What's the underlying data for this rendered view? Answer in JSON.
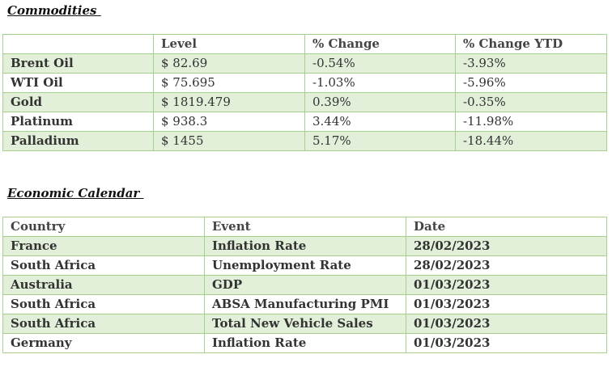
{
  "commodities": {
    "heading": "Commodities ",
    "columns": [
      "",
      "Level",
      "% Change",
      "% Change YTD"
    ],
    "rows": [
      {
        "name": "Brent Oil",
        "level": "$ 82.69",
        "change": "-0.54%",
        "ytd": "-3.93%"
      },
      {
        "name": "WTI Oil",
        "level": "$ 75.695",
        "change": "-1.03%",
        "ytd": "-5.96%"
      },
      {
        "name": "Gold",
        "level": "$ 1819.479",
        "change": "0.39%",
        "ytd": "-0.35%"
      },
      {
        "name": "Platinum",
        "level": "$ 938.3",
        "change": "3.44%",
        "ytd": "-11.98%"
      },
      {
        "name": "Palladium",
        "level": "$ 1455",
        "change": "5.17%",
        "ytd": "-18.44%"
      }
    ]
  },
  "calendar": {
    "heading": "Economic Calendar ",
    "columns": [
      "Country",
      "Event",
      "Date"
    ],
    "rows": [
      {
        "country": "France",
        "event": "Inflation Rate",
        "date": "28/02/2023"
      },
      {
        "country": "South Africa",
        "event": "Unemployment Rate",
        "date": "28/02/2023"
      },
      {
        "country": "Australia",
        "event": "GDP",
        "date": "01/03/2023"
      },
      {
        "country": "South Africa",
        "event": "ABSA Manufacturing PMI",
        "date": "01/03/2023"
      },
      {
        "country": "South Africa",
        "event": "Total New Vehicle Sales",
        "date": "01/03/2023"
      },
      {
        "country": "Germany",
        "event": "Inflation Rate",
        "date": "01/03/2023"
      }
    ]
  },
  "colors": {
    "band": "#e2efd9",
    "border": "#a8d08d"
  }
}
